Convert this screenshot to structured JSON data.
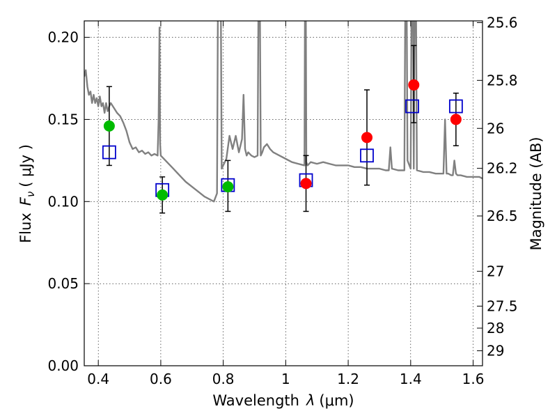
{
  "chart_data": {
    "type": "scatter",
    "xlabel_prefix": "Wavelength",
    "xlabel_symbol": "λ",
    "xlabel_unit": "(μm)",
    "ylabel_prefix": "Flux",
    "ylabel_symbol": "F",
    "ylabel_subscript": "ν",
    "ylabel_unit": "( μJy )",
    "y2label": "Magnitude (AB)",
    "xlim": [
      0.355,
      1.63
    ],
    "ylim": [
      0.0,
      0.21
    ],
    "grid": true,
    "legend": "none",
    "x_ticks": [
      {
        "value": 0.4,
        "label": "0.4"
      },
      {
        "value": 0.6,
        "label": "0.6"
      },
      {
        "value": 0.8,
        "label": "0.8"
      },
      {
        "value": 1.0,
        "label": "1"
      },
      {
        "value": 1.2,
        "label": "1.2"
      },
      {
        "value": 1.4,
        "label": "1.4"
      },
      {
        "value": 1.6,
        "label": "1.6"
      }
    ],
    "y_ticks": [
      {
        "value": 0.0,
        "label": "0.00"
      },
      {
        "value": 0.05,
        "label": "0.05"
      },
      {
        "value": 0.1,
        "label": "0.10"
      },
      {
        "value": 0.15,
        "label": "0.15"
      },
      {
        "value": 0.2,
        "label": "0.20"
      }
    ],
    "y2_ticks": [
      {
        "mag": 25.6,
        "label": "25.6"
      },
      {
        "mag": 25.8,
        "label": "25.8"
      },
      {
        "mag": 26.0,
        "label": "26"
      },
      {
        "mag": 26.2,
        "label": "26.2"
      },
      {
        "mag": 26.5,
        "label": "26.5"
      },
      {
        "mag": 27.0,
        "label": "27"
      },
      {
        "mag": 27.5,
        "label": "27.5"
      },
      {
        "mag": 28.0,
        "label": "28"
      },
      {
        "mag": 29.0,
        "label": "29"
      }
    ],
    "template_spectrum": {
      "color": "#808080",
      "x": [
        0.355,
        0.36,
        0.365,
        0.37,
        0.375,
        0.38,
        0.385,
        0.39,
        0.395,
        0.4,
        0.405,
        0.41,
        0.415,
        0.42,
        0.425,
        0.43,
        0.435,
        0.44,
        0.45,
        0.46,
        0.47,
        0.48,
        0.49,
        0.5,
        0.51,
        0.52,
        0.53,
        0.54,
        0.55,
        0.56,
        0.57,
        0.58,
        0.59,
        0.593,
        0.596,
        0.598,
        0.6,
        0.62,
        0.64,
        0.66,
        0.68,
        0.7,
        0.72,
        0.74,
        0.76,
        0.77,
        0.78,
        0.785,
        0.79,
        0.795,
        0.8,
        0.81,
        0.82,
        0.83,
        0.84,
        0.85,
        0.86,
        0.865,
        0.87,
        0.875,
        0.88,
        0.89,
        0.9,
        0.91,
        0.915,
        0.92,
        0.925,
        0.93,
        0.94,
        0.95,
        0.96,
        0.98,
        1.0,
        1.02,
        1.04,
        1.06,
        1.063,
        1.066,
        1.07,
        1.08,
        1.1,
        1.12,
        1.14,
        1.16,
        1.18,
        1.2,
        1.22,
        1.24,
        1.26,
        1.28,
        1.3,
        1.32,
        1.33,
        1.335,
        1.34,
        1.36,
        1.38,
        1.385,
        1.39,
        1.4,
        1.405,
        1.41,
        1.415,
        1.42,
        1.44,
        1.46,
        1.48,
        1.5,
        1.505,
        1.51,
        1.515,
        1.52,
        1.53,
        1.535,
        1.54,
        1.545,
        1.55,
        1.56,
        1.58,
        1.6,
        1.62,
        1.63
      ],
      "y": [
        0.176,
        0.18,
        0.17,
        0.165,
        0.167,
        0.16,
        0.165,
        0.16,
        0.163,
        0.158,
        0.164,
        0.158,
        0.16,
        0.154,
        0.16,
        0.155,
        0.158,
        0.16,
        0.157,
        0.154,
        0.152,
        0.148,
        0.143,
        0.136,
        0.132,
        0.133,
        0.13,
        0.131,
        0.129,
        0.13,
        0.128,
        0.129,
        0.128,
        0.15,
        0.206,
        0.135,
        0.128,
        0.124,
        0.12,
        0.116,
        0.112,
        0.109,
        0.106,
        0.103,
        0.101,
        0.1,
        0.105,
        0.3,
        0.3,
        0.12,
        0.122,
        0.126,
        0.14,
        0.132,
        0.14,
        0.13,
        0.138,
        0.165,
        0.132,
        0.128,
        0.13,
        0.128,
        0.127,
        0.128,
        0.3,
        0.128,
        0.13,
        0.133,
        0.135,
        0.132,
        0.13,
        0.128,
        0.126,
        0.124,
        0.123,
        0.122,
        0.3,
        0.124,
        0.122,
        0.124,
        0.123,
        0.124,
        0.123,
        0.122,
        0.122,
        0.122,
        0.121,
        0.121,
        0.12,
        0.12,
        0.12,
        0.119,
        0.119,
        0.133,
        0.12,
        0.119,
        0.119,
        0.3,
        0.125,
        0.12,
        0.3,
        0.12,
        0.3,
        0.119,
        0.118,
        0.118,
        0.117,
        0.117,
        0.117,
        0.15,
        0.117,
        0.117,
        0.116,
        0.116,
        0.125,
        0.117,
        0.116,
        0.116,
        0.115,
        0.115,
        0.115,
        0.114
      ]
    },
    "photometry_green": {
      "color": "#00bb00",
      "x": [
        0.435,
        0.605,
        0.815
      ],
      "y": [
        0.146,
        0.104,
        0.109
      ],
      "yerr_low": [
        0.024,
        0.011,
        0.015
      ],
      "yerr_high": [
        0.024,
        0.011,
        0.016
      ]
    },
    "photometry_red": {
      "color": "#ff0000",
      "x": [
        1.065,
        1.26,
        1.41,
        1.545
      ],
      "y": [
        0.111,
        0.139,
        0.171,
        0.15
      ],
      "yerr_low": [
        0.017,
        0.029,
        0.023,
        0.016
      ],
      "yerr_high": [
        0.017,
        0.029,
        0.024,
        0.016
      ]
    },
    "model_squares": {
      "color": "#0000cc",
      "x": [
        0.435,
        0.605,
        0.815,
        1.065,
        1.26,
        1.405,
        1.545
      ],
      "y": [
        0.13,
        0.107,
        0.11,
        0.113,
        0.128,
        0.158,
        0.158
      ]
    }
  }
}
